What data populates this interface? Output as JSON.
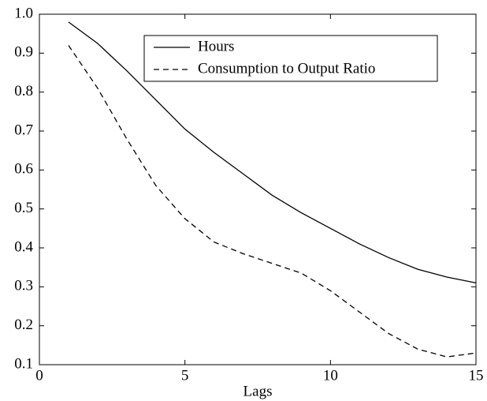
{
  "chart_data": {
    "type": "line",
    "xlabel": "Lags",
    "x": [
      1,
      2,
      3,
      4,
      5,
      6,
      7,
      8,
      9,
      10,
      11,
      12,
      13,
      14,
      15
    ],
    "series": [
      {
        "name": "Hours",
        "color": "#000000",
        "linestyle": "solid",
        "values": [
          0.98,
          0.925,
          0.855,
          0.78,
          0.705,
          0.645,
          0.59,
          0.535,
          0.49,
          0.45,
          0.41,
          0.375,
          0.345,
          0.325,
          0.31
        ]
      },
      {
        "name": "Consumption to Output Ratio",
        "color": "#000000",
        "linestyle": "dashed",
        "values": [
          0.92,
          0.81,
          0.68,
          0.56,
          0.475,
          0.415,
          0.385,
          0.36,
          0.335,
          0.29,
          0.235,
          0.18,
          0.14,
          0.12,
          0.13
        ]
      }
    ],
    "xlim": [
      0,
      15
    ],
    "xticks": [
      0,
      5,
      10,
      15
    ],
    "ylim": [
      0.1,
      1
    ],
    "yticks": [
      0.1,
      0.2,
      0.3,
      0.4,
      0.5,
      0.6,
      0.7,
      0.8,
      0.9,
      {
        "value": 1,
        "label": "1.0"
      }
    ],
    "legend": "upper-right",
    "grid": false
  }
}
